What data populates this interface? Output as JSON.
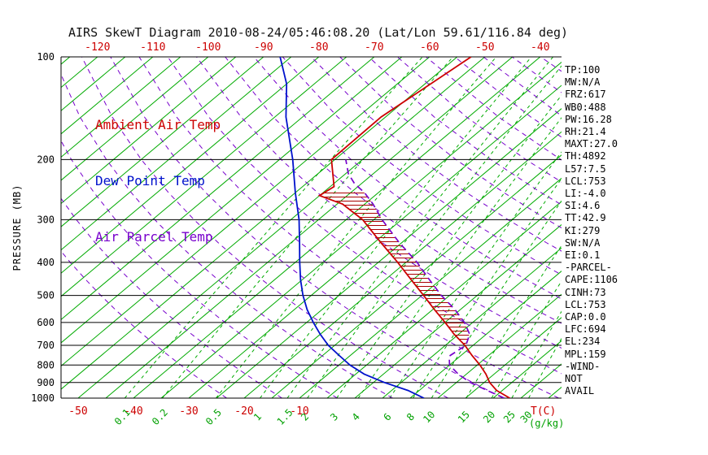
{
  "title": "AIRS SkewT Diagram 2010-08-24/05:46:08.20 (Lat/Lon 59.61/116.84 deg)",
  "legend": {
    "ambient": {
      "label": "Ambient Air Temp",
      "color": "#cc0000"
    },
    "dew_point": {
      "label": "Dew Point Temp",
      "color": "#0011cc"
    },
    "parcel": {
      "label": "Air Parcel Temp",
      "color": "#7700cc"
    }
  },
  "stats_panel": {
    "items": [
      "TP:100",
      "MW:N/A",
      "FRZ:617",
      "WB0:488",
      "PW:16.28",
      "RH:21.4",
      "MAXT:27.0",
      "TH:4892",
      "L57:7.5",
      "LCL:753",
      "LI:-4.0",
      "SI:4.6",
      "TT:42.9",
      "KI:279",
      "SW:N/A",
      "EI:0.1",
      "-PARCEL-",
      "CAPE:1106",
      "CINH:73",
      "LCL:753",
      "CAP:0.0",
      "LFC:694",
      "EL:234",
      "MPL:159",
      "-WIND-",
      "NOT",
      "AVAIL"
    ]
  },
  "chart_data": {
    "type": "line",
    "title": "AIRS SkewT Diagram 2010-08-24/05:46:08.20 (Lat/Lon 59.61/116.84 deg)",
    "projection": "skew-t-log-p",
    "y_axis": {
      "label": "PRESSURE (MB)",
      "scale": "log",
      "range": [
        100,
        1000
      ],
      "ticks_mb": [
        100,
        200,
        300,
        400,
        500,
        600,
        700,
        800,
        900,
        1000
      ]
    },
    "x_axis": {
      "label": "T(C)",
      "secondary_label": "(g/kg)",
      "top_ticks_C": [
        -120,
        -110,
        -100,
        -90,
        -80,
        -70,
        -60,
        -50,
        -40
      ],
      "bottom_ticks_C": [
        -50,
        -40,
        -30,
        -20,
        -10
      ],
      "mixing_ratio_ticks_gkg": [
        0.1,
        0.2,
        0.5,
        1,
        1.5,
        2,
        3,
        4,
        6,
        8,
        10,
        15,
        20,
        25,
        30
      ]
    },
    "isotherms_C": {
      "min": -135,
      "max": 40,
      "step": 5
    },
    "dry_adiabats_K": {
      "min": 250,
      "max": 470,
      "step": 10
    },
    "series": [
      {
        "name": "Ambient Air Temp",
        "color": "#cc0000",
        "style": "solid",
        "points_p_T": [
          [
            1000,
            28
          ],
          [
            950,
            24
          ],
          [
            900,
            21
          ],
          [
            850,
            18.5
          ],
          [
            800,
            15.5
          ],
          [
            750,
            12
          ],
          [
            700,
            8.5
          ],
          [
            650,
            4.2
          ],
          [
            600,
            0
          ],
          [
            550,
            -4.7
          ],
          [
            500,
            -9.7
          ],
          [
            450,
            -15.3
          ],
          [
            400,
            -21.5
          ],
          [
            350,
            -28.8
          ],
          [
            300,
            -37
          ],
          [
            270,
            -44
          ],
          [
            255,
            -50
          ],
          [
            240,
            -49.3
          ],
          [
            200,
            -55.6
          ],
          [
            150,
            -55.8
          ],
          [
            100,
            -52.5
          ]
        ]
      },
      {
        "name": "Dew Point Temp",
        "color": "#0011cc",
        "style": "solid",
        "points_p_T": [
          [
            1000,
            12.5
          ],
          [
            950,
            8
          ],
          [
            900,
            2
          ],
          [
            850,
            -3.5
          ],
          [
            800,
            -8
          ],
          [
            750,
            -12
          ],
          [
            700,
            -16.2
          ],
          [
            650,
            -20
          ],
          [
            600,
            -23.8
          ],
          [
            550,
            -27.7
          ],
          [
            500,
            -31.5
          ],
          [
            450,
            -35.3
          ],
          [
            400,
            -39.2
          ],
          [
            350,
            -43.5
          ],
          [
            300,
            -48.5
          ],
          [
            250,
            -55
          ],
          [
            200,
            -62.6
          ],
          [
            150,
            -73
          ],
          [
            120,
            -80
          ],
          [
            100,
            -87
          ]
        ]
      },
      {
        "name": "Air Parcel Temp",
        "color": "#7700cc",
        "style": "dashed",
        "points_p_T": [
          [
            1000,
            27
          ],
          [
            950,
            22.3
          ],
          [
            900,
            17.5
          ],
          [
            850,
            13.5
          ],
          [
            800,
            10
          ],
          [
            753,
            8
          ],
          [
            700,
            8.7
          ],
          [
            650,
            7
          ],
          [
            600,
            3.5
          ],
          [
            550,
            -1
          ],
          [
            500,
            -6.5
          ],
          [
            450,
            -12
          ],
          [
            400,
            -18
          ],
          [
            350,
            -25.5
          ],
          [
            300,
            -33.5
          ],
          [
            270,
            -38.5
          ],
          [
            250,
            -42.5
          ],
          [
            240,
            -45
          ],
          [
            234,
            -46.5
          ],
          [
            220,
            -49.5
          ],
          [
            200,
            -53
          ]
        ]
      }
    ],
    "cape_hatch_region": {
      "from_pressure_mb": 700,
      "to_pressure_mb": 248,
      "hatch_color": "#aa0000"
    },
    "colors": {
      "isotherm": "#00aa00",
      "mixing_ratio_line": "#00aa00",
      "dry_adiabat": "#7700cc",
      "pressure_line": "#000000",
      "top_axis_text": "#cc0000",
      "bottom_temp_text": "#cc0000",
      "mixing_text": "#00a000",
      "axis_text": "#000000"
    }
  }
}
